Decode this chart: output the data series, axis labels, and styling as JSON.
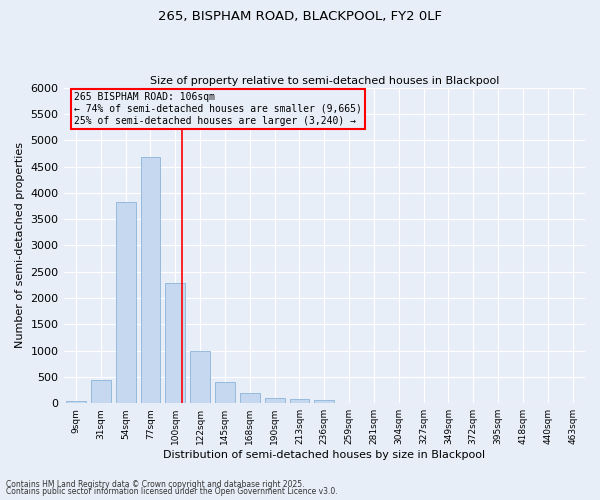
{
  "title1": "265, BISPHAM ROAD, BLACKPOOL, FY2 0LF",
  "title2": "Size of property relative to semi-detached houses in Blackpool",
  "xlabel": "Distribution of semi-detached houses by size in Blackpool",
  "ylabel": "Number of semi-detached properties",
  "categories": [
    "9sqm",
    "31sqm",
    "54sqm",
    "77sqm",
    "100sqm",
    "122sqm",
    "145sqm",
    "168sqm",
    "190sqm",
    "213sqm",
    "236sqm",
    "259sqm",
    "281sqm",
    "304sqm",
    "327sqm",
    "349sqm",
    "372sqm",
    "395sqm",
    "418sqm",
    "440sqm",
    "463sqm"
  ],
  "values": [
    50,
    440,
    3820,
    4680,
    2280,
    1000,
    400,
    200,
    90,
    75,
    60,
    0,
    0,
    0,
    0,
    0,
    0,
    0,
    0,
    0,
    0
  ],
  "bar_color": "#c5d8f0",
  "bar_edge_color": "#7baad4",
  "ref_line_x": 4.27,
  "ref_line_color": "red",
  "annotation_title": "265 BISPHAM ROAD: 106sqm",
  "annotation_line1": "← 74% of semi-detached houses are smaller (9,665)",
  "annotation_line2": "25% of semi-detached houses are larger (3,240) →",
  "annotation_box_color": "red",
  "ylim": [
    0,
    6000
  ],
  "yticks": [
    0,
    500,
    1000,
    1500,
    2000,
    2500,
    3000,
    3500,
    4000,
    4500,
    5000,
    5500,
    6000
  ],
  "background_color": "#e8eef8",
  "grid_color": "white",
  "footer1": "Contains HM Land Registry data © Crown copyright and database right 2025.",
  "footer2": "Contains public sector information licensed under the Open Government Licence v3.0."
}
